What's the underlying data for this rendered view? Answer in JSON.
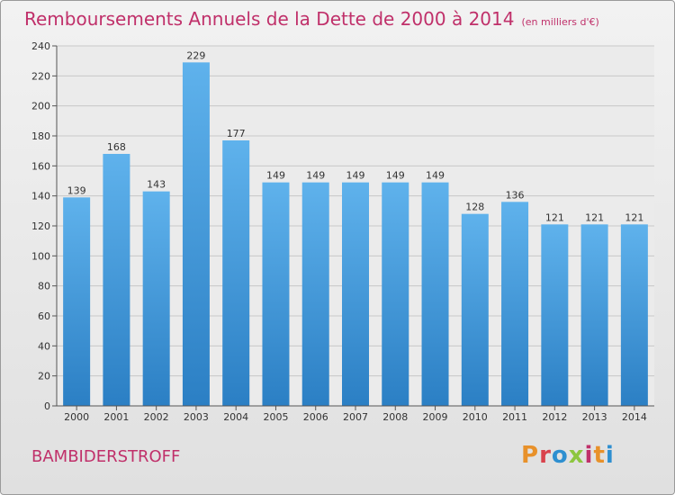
{
  "header": {
    "title": "Remboursements Annuels de la Dette de 2000 à 2014",
    "unit": "(en milliers d'€)"
  },
  "footer": {
    "commune": "BAMBIDERSTROFF",
    "logo_text": "Proxiti",
    "logo_colors": [
      "#e8912a",
      "#d9424c",
      "#2e8fd0",
      "#8dc63f",
      "#c0306a",
      "#e8912a",
      "#2e8fd0"
    ]
  },
  "chart_data": {
    "type": "bar",
    "title": "Remboursements Annuels de la Dette de 2000 à 2014",
    "xlabel": "",
    "ylabel": "",
    "categories": [
      "2000",
      "2001",
      "2002",
      "2003",
      "2004",
      "2005",
      "2006",
      "2007",
      "2008",
      "2009",
      "2010",
      "2011",
      "2012",
      "2013",
      "2014"
    ],
    "values": [
      139,
      168,
      143,
      229,
      177,
      149,
      149,
      149,
      149,
      149,
      128,
      136,
      121,
      121,
      121
    ],
    "ylim": [
      0,
      240
    ],
    "yticks": [
      0,
      20,
      40,
      60,
      80,
      100,
      120,
      140,
      160,
      180,
      200,
      220,
      240
    ],
    "grid": true,
    "bar_color_top": "#5fb2ec",
    "bar_color_bottom": "#2b7fc4",
    "title_color": "#c0306a"
  }
}
